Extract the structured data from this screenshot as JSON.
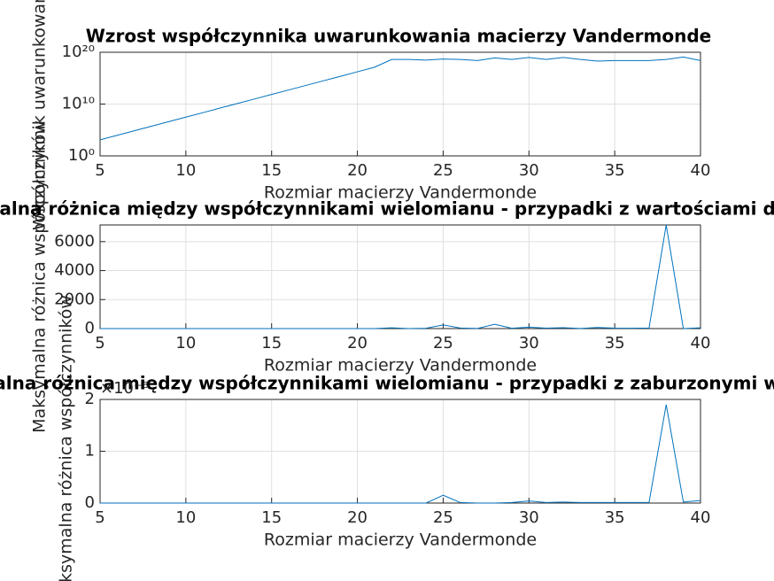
{
  "chart_data": [
    {
      "type": "line",
      "title": "Wzrost współczynnika uwarunkowania macierzy Vandermonde",
      "x_label": "Rozmiar macierzy Vandermonde",
      "y_label": "Współczynnik uwarunkowania",
      "x": [
        5,
        6,
        7,
        8,
        9,
        10,
        11,
        12,
        13,
        14,
        15,
        16,
        17,
        18,
        19,
        20,
        21,
        22,
        23,
        24,
        25,
        26,
        27,
        28,
        29,
        30,
        31,
        32,
        33,
        34,
        35,
        36,
        37,
        38,
        39,
        40
      ],
      "series": [
        {
          "color": "#0072bd",
          "values": [
            1260,
            9400,
            71000,
            530000,
            4000000,
            30000000,
            220000000,
            1700000000,
            13000000000,
            94000000000,
            710000000000,
            5300000000000,
            40000000000000,
            300000000000000,
            2200000000000000,
            17000000000000000,
            130000000000000000,
            4e+18,
            4e+18,
            3e+18,
            5e+18,
            4e+18,
            2.5e+18,
            8e+18,
            4e+18,
            1e+19,
            4e+18,
            1e+19,
            4e+18,
            2e+18,
            2.5e+18,
            2.5e+18,
            2.5e+18,
            4e+18,
            1.2e+19,
            2.5e+18
          ]
        }
      ],
      "xlim": [
        5,
        40
      ],
      "xticks": [
        5,
        10,
        15,
        20,
        25,
        30,
        35,
        40
      ],
      "ylim": [
        1,
        1e+20
      ],
      "yticks": [
        {
          "value": 1,
          "label": "10⁰"
        },
        {
          "value": 10000000000.0,
          "label": "10¹⁰"
        },
        {
          "value": 1e+20,
          "label": "10²⁰"
        }
      ],
      "log_y": true,
      "grid": true
    },
    {
      "type": "line",
      "title": "Maksymalna różnica między współczynnikami wielomianu - przypadki z wartościami dokładnymi",
      "x_label": "Rozmiar macierzy Vandermonde",
      "y_label": "Maksymalna różnica współczynników",
      "x": [
        5,
        6,
        7,
        8,
        9,
        10,
        11,
        12,
        13,
        14,
        15,
        16,
        17,
        18,
        19,
        20,
        21,
        22,
        23,
        24,
        25,
        26,
        27,
        28,
        29,
        30,
        31,
        32,
        33,
        34,
        35,
        36,
        37,
        38,
        39,
        40
      ],
      "series": [
        {
          "color": "#0072bd",
          "values": [
            0,
            0,
            0,
            0,
            0,
            0,
            0,
            0,
            0,
            0,
            0,
            0,
            0,
            0,
            0,
            0,
            0,
            50,
            0,
            20,
            250,
            40,
            10,
            300,
            20,
            100,
            30,
            60,
            10,
            80,
            30,
            20,
            40,
            7150,
            0,
            50
          ]
        }
      ],
      "xlim": [
        5,
        40
      ],
      "xticks": [
        5,
        10,
        15,
        20,
        25,
        30,
        35,
        40
      ],
      "ylim": [
        0,
        7150
      ],
      "yticks": [
        0,
        2000,
        4000,
        6000
      ],
      "log_y": false,
      "grid": true
    },
    {
      "type": "line",
      "title": "Maksymalna różnica między współczynnikami wielomianu - przypadki z zaburzonymi wartościami",
      "x_label": "Rozmiar macierzy Vandermonde",
      "y_label": "Maksymalna różnica współczynników",
      "axis_multiplier": "×10⁻⁸",
      "x": [
        5,
        6,
        7,
        8,
        9,
        10,
        11,
        12,
        13,
        14,
        15,
        16,
        17,
        18,
        19,
        20,
        21,
        22,
        23,
        24,
        25,
        26,
        27,
        28,
        29,
        30,
        31,
        32,
        33,
        34,
        35,
        36,
        37,
        38,
        39,
        40
      ],
      "series": [
        {
          "color": "#0072bd",
          "values": [
            0,
            0,
            0,
            0,
            0,
            0,
            0,
            0,
            0,
            0,
            0,
            0,
            0,
            0,
            0,
            0,
            0,
            0,
            0,
            0,
            0.15,
            0.01,
            0,
            0,
            0.01,
            0.04,
            0.01,
            0.02,
            0.01,
            0.01,
            0.01,
            0.01,
            0.01,
            1.9,
            0.02,
            0.05
          ]
        }
      ],
      "xlim": [
        5,
        40
      ],
      "xticks": [
        5,
        10,
        15,
        20,
        25,
        30,
        35,
        40
      ],
      "ylim": [
        0,
        2
      ],
      "yticks": [
        0,
        1,
        2
      ],
      "log_y": false,
      "grid": true
    }
  ]
}
